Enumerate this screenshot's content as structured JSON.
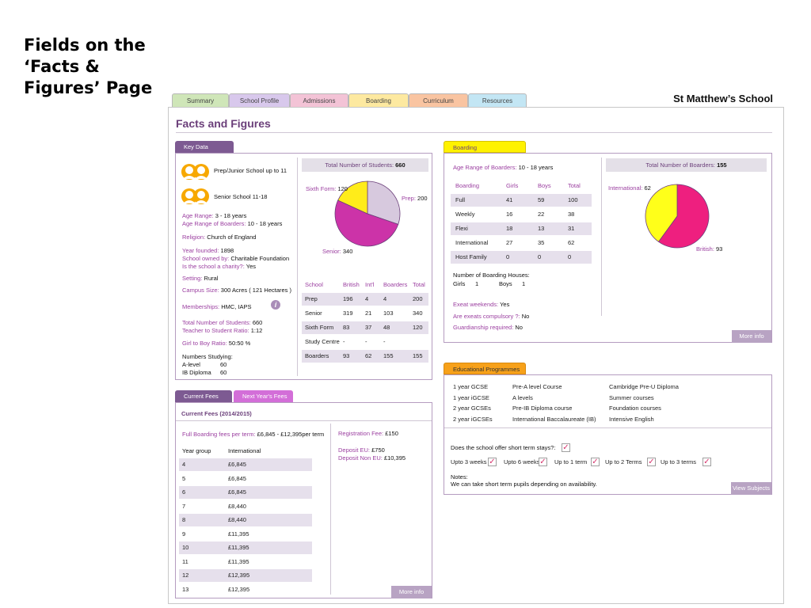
{
  "slide_title": "Fields on the ‘Facts & Figures’ Page",
  "school_name": "St Matthew’s School",
  "nav_tabs": [
    {
      "label": "Summary",
      "color": "#cfe6b8"
    },
    {
      "label": "School Profile",
      "color": "#d8c8ec"
    },
    {
      "label": "Admissions",
      "color": "#f3c3d6"
    },
    {
      "label": "Boarding",
      "color": "#fde9a0"
    },
    {
      "label": "Curriculum",
      "color": "#f9c4a1"
    },
    {
      "label": "Resources",
      "color": "#c3e6f4"
    }
  ],
  "page_heading": "Facts and Figures",
  "key_data": {
    "tab_label": "Key Data",
    "prep_label": "Prep/Junior School up to 11",
    "senior_label": "Senior School 11-18",
    "age_range_label": "Age Range:",
    "age_range_value": "3 - 18 years",
    "age_boarders_label": "Age Range of Boarders:",
    "age_boarders_value": "10 - 18 years",
    "religion_label": "Religion:",
    "religion_value": "Church of England",
    "year_founded_label": "Year founded:",
    "year_founded_value": "1898",
    "owned_label": "School owned by:",
    "owned_value": "Charitable Foundation",
    "charity_label": "Is the school a charity?:",
    "charity_value": "Yes",
    "setting_label": "Setting:",
    "setting_value": "Rural",
    "campus_label": "Campus Size:",
    "campus_value": "300 Acres ( 121 Hectares )",
    "memberships_label": "Memberships:",
    "memberships_value": "HMC, IAPS",
    "total_students_label": "Total Number of Students:",
    "total_students_value": "660",
    "ratio_label": "Teacher to Student Ratio:",
    "ratio_value": "1:12",
    "girl_boy_label": "Girl to Boy Ratio:",
    "girl_boy_value": "50:50 %",
    "numbers_studying_label": "Numbers Studying:",
    "studying": [
      {
        "name": "A-level",
        "value": "60"
      },
      {
        "name": "IB Diploma",
        "value": "60"
      }
    ],
    "pie_title_label": "Total Number of Students:",
    "pie_title_value": "660",
    "pie_labels": {
      "sixth_form": "Sixth Form:",
      "sixth_form_value": "120",
      "prep": "Prep:",
      "prep_value": "200",
      "senior": "Senior:",
      "senior_value": "340"
    },
    "table_headers": [
      "School",
      "British",
      "Int'l",
      "Boarders",
      "Total"
    ],
    "table_rows": [
      [
        "Prep",
        "196",
        "4",
        "4",
        "200"
      ],
      [
        "Senior",
        "319",
        "21",
        "103",
        "340"
      ],
      [
        "Sixth Form",
        "83",
        "37",
        "48",
        "120"
      ],
      [
        "Study Centre",
        "-",
        "-",
        "-",
        ""
      ],
      [
        "Boarders",
        "93",
        "62",
        "155",
        "155"
      ]
    ]
  },
  "fees": {
    "tab_current": "Current Fees",
    "tab_next": "Next Year's Fees",
    "heading": "Current Fees (2014/2015)",
    "full_boarding_label": "Full Boarding fees per term:",
    "full_boarding_value": "£6,845 - £12,395per term",
    "col_year": "Year group",
    "col_intl": "International",
    "rows": [
      [
        "4",
        "£6,845"
      ],
      [
        "5",
        "£6,845"
      ],
      [
        "6",
        "£6,845"
      ],
      [
        "7",
        "£8,440"
      ],
      [
        "8",
        "£8,440"
      ],
      [
        "9",
        "£11,395"
      ],
      [
        "10",
        "£11,395"
      ],
      [
        "11",
        "£11,395"
      ],
      [
        "12",
        "£12,395"
      ],
      [
        "13",
        "£12,395"
      ]
    ],
    "registration_label": "Registration Fee:",
    "registration_value": "£150",
    "deposit_eu_label": "Deposit EU:",
    "deposit_eu_value": "£750",
    "deposit_non_eu_label": "Deposit Non EU:",
    "deposit_non_eu_value": "£10,395",
    "more_info": "More info"
  },
  "boarding": {
    "tab_label": "Boarding",
    "age_range_label": "Age Range of Boarders:",
    "age_range_value": "10 - 18 years",
    "table_headers": [
      "Boarding",
      "Girls",
      "Boys",
      "Total"
    ],
    "table_rows": [
      [
        "Full",
        "41",
        "59",
        "100"
      ],
      [
        "Weekly",
        "16",
        "22",
        "38"
      ],
      [
        "Flexi",
        "18",
        "13",
        "31"
      ],
      [
        "International",
        "27",
        "35",
        "62"
      ],
      [
        "Host Family",
        "0",
        "0",
        "0"
      ]
    ],
    "houses_label": "Number of Boarding Houses:",
    "houses_girls_label": "Girls",
    "houses_girls_value": "1",
    "houses_boys_label": "Boys",
    "houses_boys_value": "1",
    "exeat_label": "Exeat weekends:",
    "exeat_value": "Yes",
    "exeat_comp_label": "Are exeats compulsory ?:",
    "exeat_comp_value": "No",
    "guardianship_label": "Guardianship required:",
    "guardianship_value": "No",
    "pie_title_label": "Total Number of Boarders:",
    "pie_title_value": "155",
    "pie_labels": {
      "international": "International:",
      "international_value": "62",
      "british": "British:",
      "british_value": "93"
    },
    "more_info": "More info"
  },
  "edu": {
    "tab_label": "Educational Programmes",
    "col1": [
      "1 year GCSE",
      "1 year iGCSE",
      "2 year GCSEs",
      "2 year iGCSEs"
    ],
    "col2": [
      "Pre-A level Course",
      "A levels",
      "Pre-IB Diploma course",
      "International Baccalaureate (IB)"
    ],
    "col3": [
      "Cambridge Pre-U Diploma",
      "Summer courses",
      "Foundation courses",
      "Intensive English"
    ],
    "short_term_label": "Does the school offer short term stays?:",
    "durations": [
      "Upto 3 weeks",
      "Upto 6 weeks",
      "Up to 1 term",
      "Up to 2  Terms",
      "Up to 3 terms"
    ],
    "notes_label": "Notes:",
    "notes_value": "We can take short term pupils depending on availability.",
    "view_subjects": "View Subjects"
  },
  "chart_data": [
    {
      "type": "pie",
      "title": "Total Number of Students: 660",
      "categories": [
        "Prep",
        "Senior",
        "Sixth Form"
      ],
      "values": [
        200,
        340,
        120
      ],
      "colors": [
        "#d7c9de",
        "#cc33a8",
        "#ffec1a"
      ]
    },
    {
      "type": "pie",
      "title": "Total Number of Boarders: 155",
      "categories": [
        "British",
        "International"
      ],
      "values": [
        93,
        62
      ],
      "colors": [
        "#ee1f7f",
        "#ffff1a"
      ]
    }
  ]
}
